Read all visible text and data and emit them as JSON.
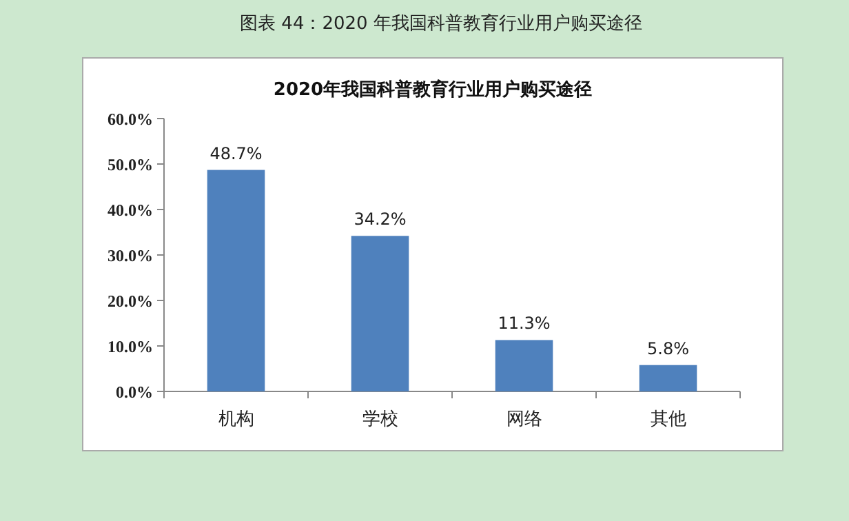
{
  "chart_data": {
    "type": "bar",
    "title": "图表 44：2020 年我国科普教育行业用户购买途径",
    "subtitle": "2020年我国科普教育行业用户购买途径",
    "categories": [
      "机构",
      "学校",
      "网络",
      "其他"
    ],
    "values": [
      48.7,
      34.2,
      11.3,
      5.8
    ],
    "value_labels": [
      "48.7%",
      "34.2%",
      "11.3%",
      "5.8%"
    ],
    "color": "#4f81bd",
    "ylim": [
      0,
      60
    ],
    "yticks": [
      {
        "value": 0,
        "label": "0.0%"
      },
      {
        "value": 10,
        "label": "10.0%"
      },
      {
        "value": 20,
        "label": "20.0%"
      },
      {
        "value": 30,
        "label": "30.0%"
      },
      {
        "value": 40,
        "label": "40.0%"
      },
      {
        "value": 50,
        "label": "50.0%"
      },
      {
        "value": 60,
        "label": "60.0%"
      }
    ],
    "grid": false,
    "legend": false
  }
}
